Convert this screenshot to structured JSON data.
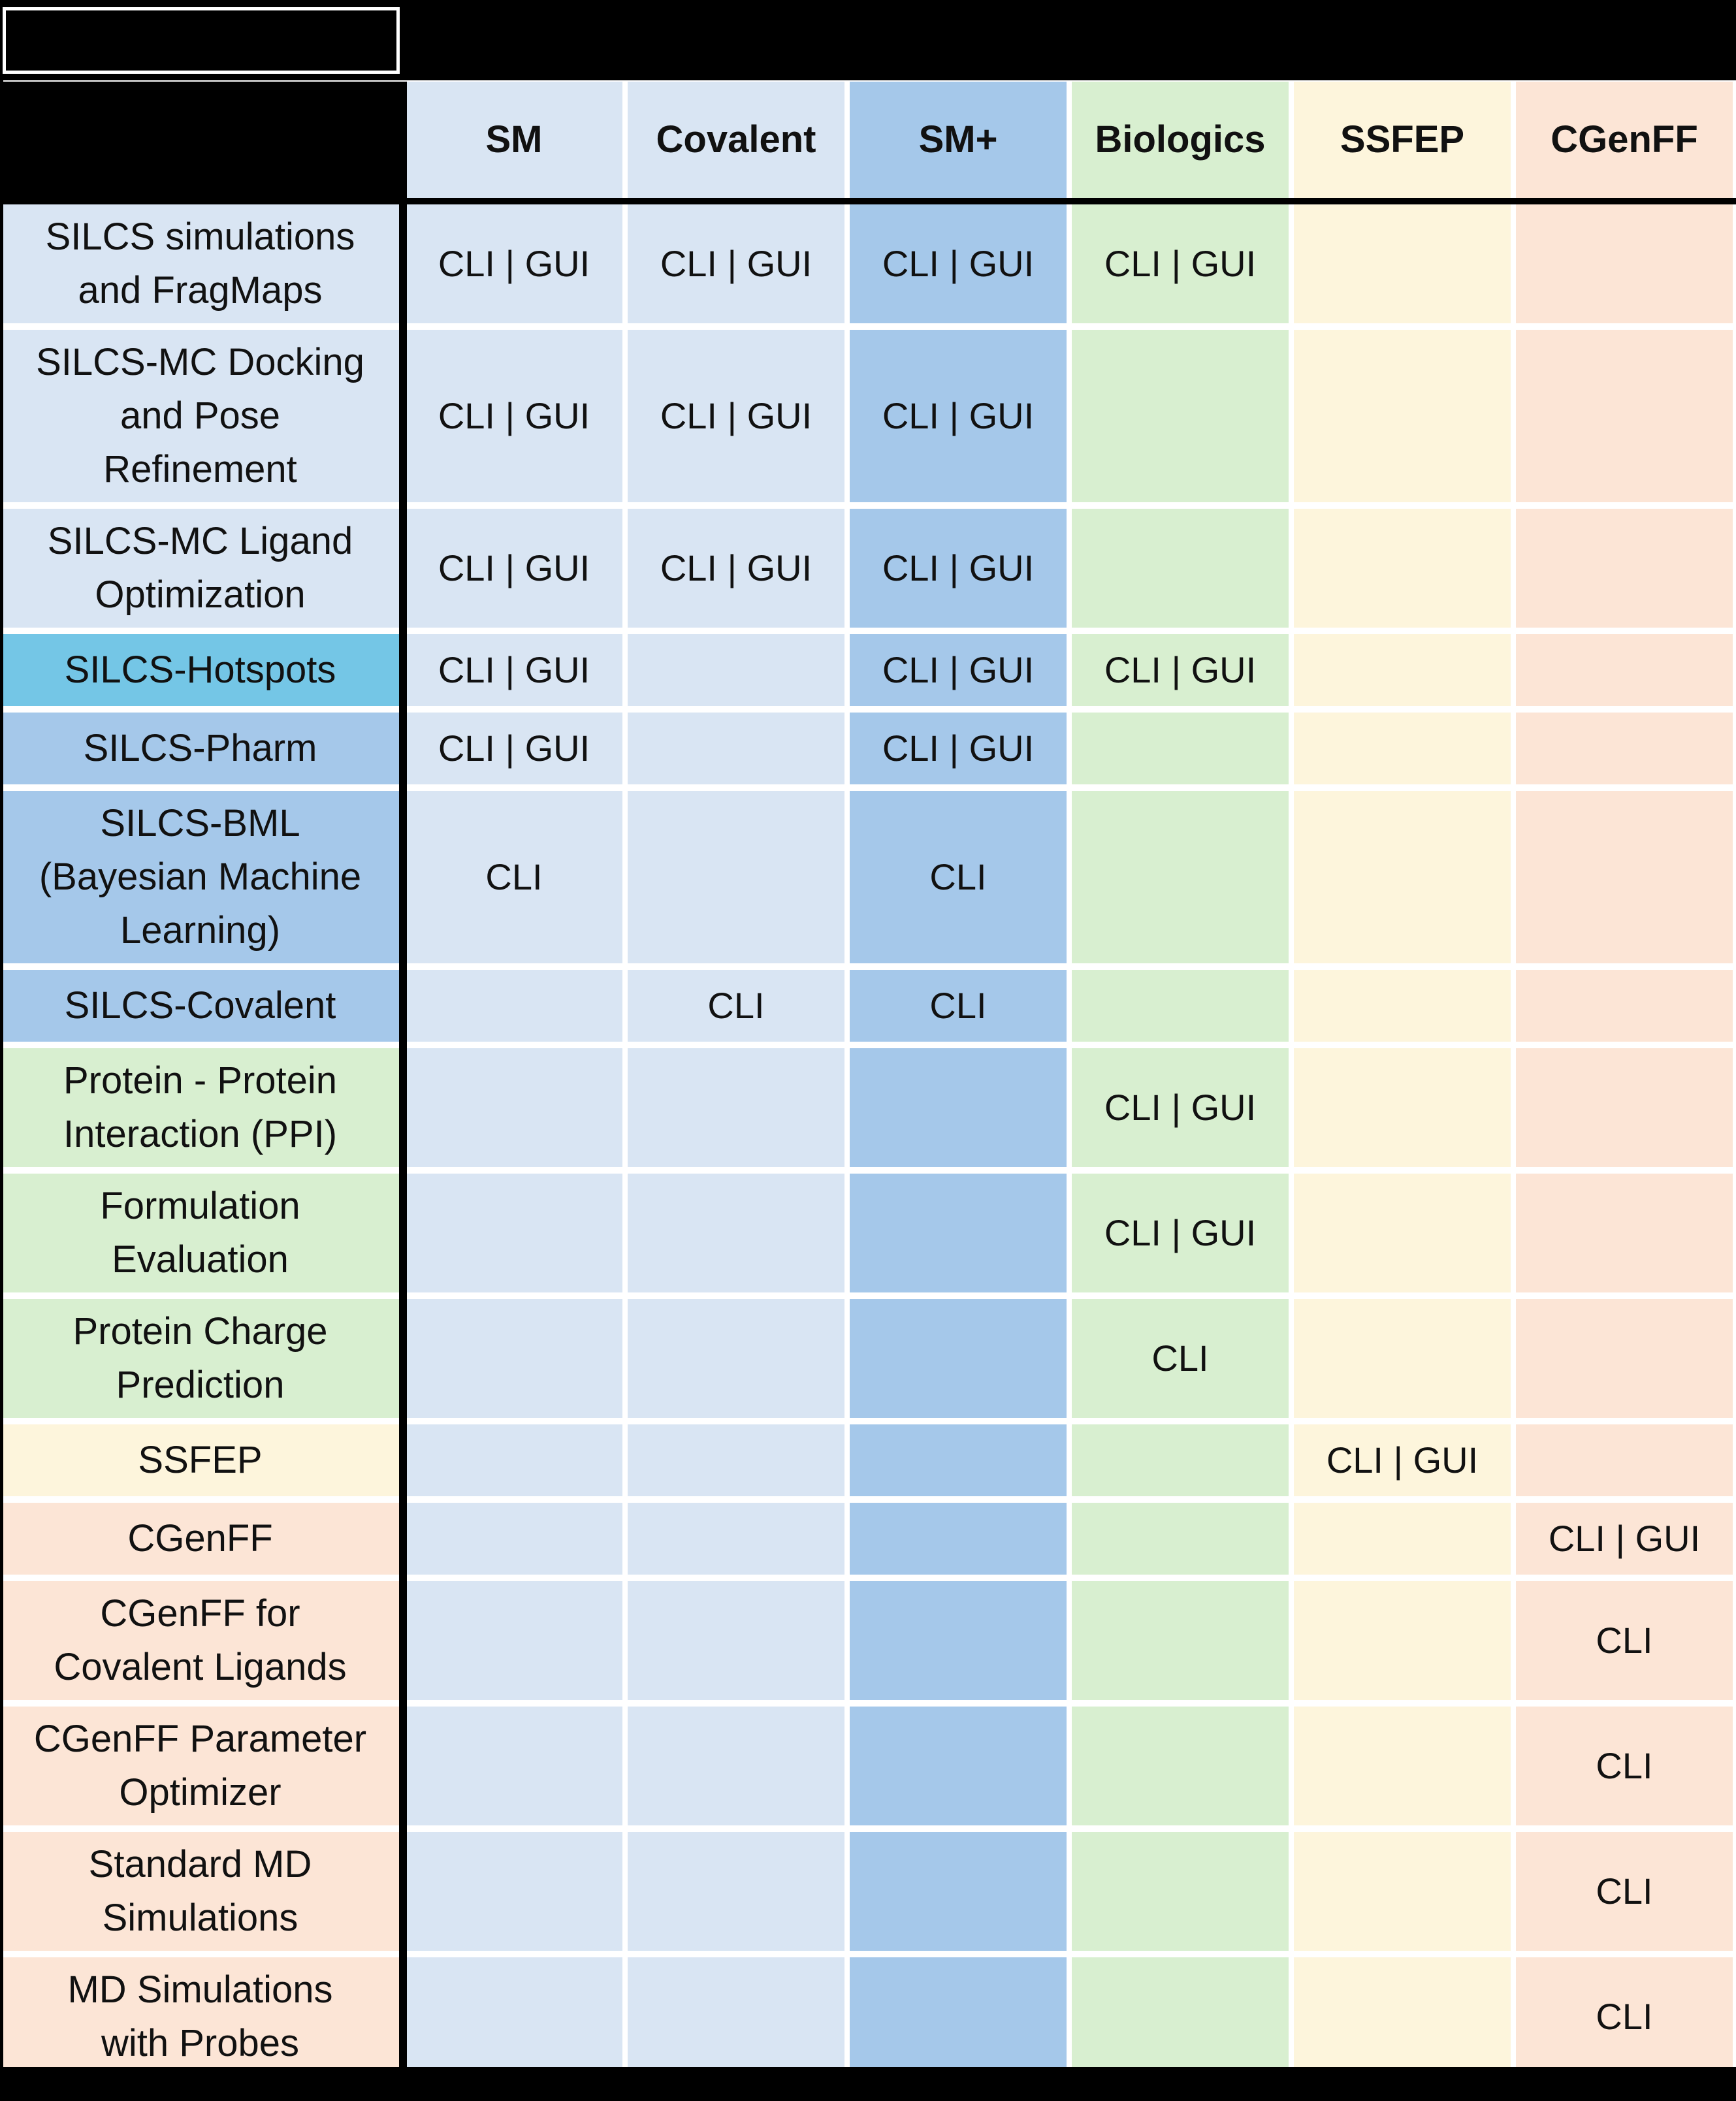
{
  "title_band": {
    "title": ""
  },
  "colors": {
    "light_blue": "#D9E5F3",
    "medium_blue": "#A5C8EA",
    "cyan": "#74C6E6",
    "green": "#D8EFD0",
    "cream": "#FDF5DC",
    "peach": "#FCE5D6",
    "frame_black": "#000000",
    "gap_white": "#FFFFFF",
    "text": "#111111"
  },
  "table": {
    "columns": [
      {
        "id": "sm",
        "label": "SM",
        "color": "light_blue"
      },
      {
        "id": "covalent",
        "label": "Covalent",
        "color": "light_blue"
      },
      {
        "id": "sm-plus",
        "label": "SM+",
        "color": "medium_blue"
      },
      {
        "id": "biologics",
        "label": "Biologics",
        "color": "green"
      },
      {
        "id": "ssfep",
        "label": "SSFEP",
        "color": "cream"
      },
      {
        "id": "cgenff",
        "label": "CGenFF",
        "color": "peach"
      }
    ],
    "rows": [
      {
        "id": "silcs-simulations-and-fragmaps",
        "label": "SILCS simulations\nand FragMaps",
        "header_color": "light_blue",
        "cells": [
          "CLI | GUI",
          "CLI | GUI",
          "CLI | GUI",
          "CLI | GUI",
          "",
          ""
        ]
      },
      {
        "id": "silcs-mc-docking-and-pose-refinement",
        "label": "SILCS-MC Docking\nand Pose\nRefinement",
        "header_color": "light_blue",
        "cells": [
          "CLI | GUI",
          "CLI | GUI",
          "CLI | GUI",
          "",
          "",
          ""
        ]
      },
      {
        "id": "silcs-mc-ligand-optimization",
        "label": "SILCS-MC Ligand\nOptimization",
        "header_color": "light_blue",
        "cells": [
          "CLI | GUI",
          "CLI | GUI",
          "CLI | GUI",
          "",
          "",
          ""
        ]
      },
      {
        "id": "silcs-hotspots",
        "label": "SILCS-Hotspots",
        "header_color": "cyan",
        "cells": [
          "CLI | GUI",
          "",
          "CLI | GUI",
          "CLI | GUI",
          "",
          ""
        ]
      },
      {
        "id": "silcs-pharm",
        "label": "SILCS-Pharm",
        "header_color": "medium_blue",
        "cells": [
          "CLI | GUI",
          "",
          "CLI | GUI",
          "",
          "",
          ""
        ]
      },
      {
        "id": "silcs-bml",
        "label": "SILCS-BML\n(Bayesian Machine\nLearning)",
        "header_color": "medium_blue",
        "cells": [
          "CLI",
          "",
          "CLI",
          "",
          "",
          ""
        ]
      },
      {
        "id": "silcs-covalent",
        "label": "SILCS-Covalent",
        "header_color": "medium_blue",
        "cells": [
          "",
          "CLI",
          "CLI",
          "",
          "",
          ""
        ]
      },
      {
        "id": "protein-protein-interaction",
        "label": "Protein - Protein\nInteraction (PPI)",
        "header_color": "green",
        "cells": [
          "",
          "",
          "",
          "CLI | GUI",
          "",
          ""
        ]
      },
      {
        "id": "formulation-evaluation",
        "label": "Formulation\nEvaluation",
        "header_color": "green",
        "cells": [
          "",
          "",
          "",
          "CLI | GUI",
          "",
          ""
        ]
      },
      {
        "id": "protein-charge-prediction",
        "label": "Protein Charge\nPrediction",
        "header_color": "green",
        "cells": [
          "",
          "",
          "",
          "CLI",
          "",
          ""
        ]
      },
      {
        "id": "ssfep-row",
        "label": "SSFEP",
        "header_color": "cream",
        "cells": [
          "",
          "",
          "",
          "",
          "CLI | GUI",
          ""
        ]
      },
      {
        "id": "cgenff-row",
        "label": "CGenFF",
        "header_color": "peach",
        "cells": [
          "",
          "",
          "",
          "",
          "",
          "CLI | GUI"
        ]
      },
      {
        "id": "cgenff-for-covalent-ligands",
        "label": "CGenFF for\nCovalent Ligands",
        "header_color": "peach",
        "cells": [
          "",
          "",
          "",
          "",
          "",
          "CLI"
        ]
      },
      {
        "id": "cgenff-parameter-optimizer",
        "label": "CGenFF Parameter\nOptimizer",
        "header_color": "peach",
        "cells": [
          "",
          "",
          "",
          "",
          "",
          "CLI"
        ]
      },
      {
        "id": "standard-md-simulations",
        "label": "Standard MD\nSimulations",
        "header_color": "peach",
        "cells": [
          "",
          "",
          "",
          "",
          "",
          "CLI"
        ]
      },
      {
        "id": "md-simulations-with-probes",
        "label": "MD Simulations\nwith Probes",
        "header_color": "peach",
        "cells": [
          "",
          "",
          "",
          "",
          "",
          "CLI"
        ]
      }
    ]
  }
}
